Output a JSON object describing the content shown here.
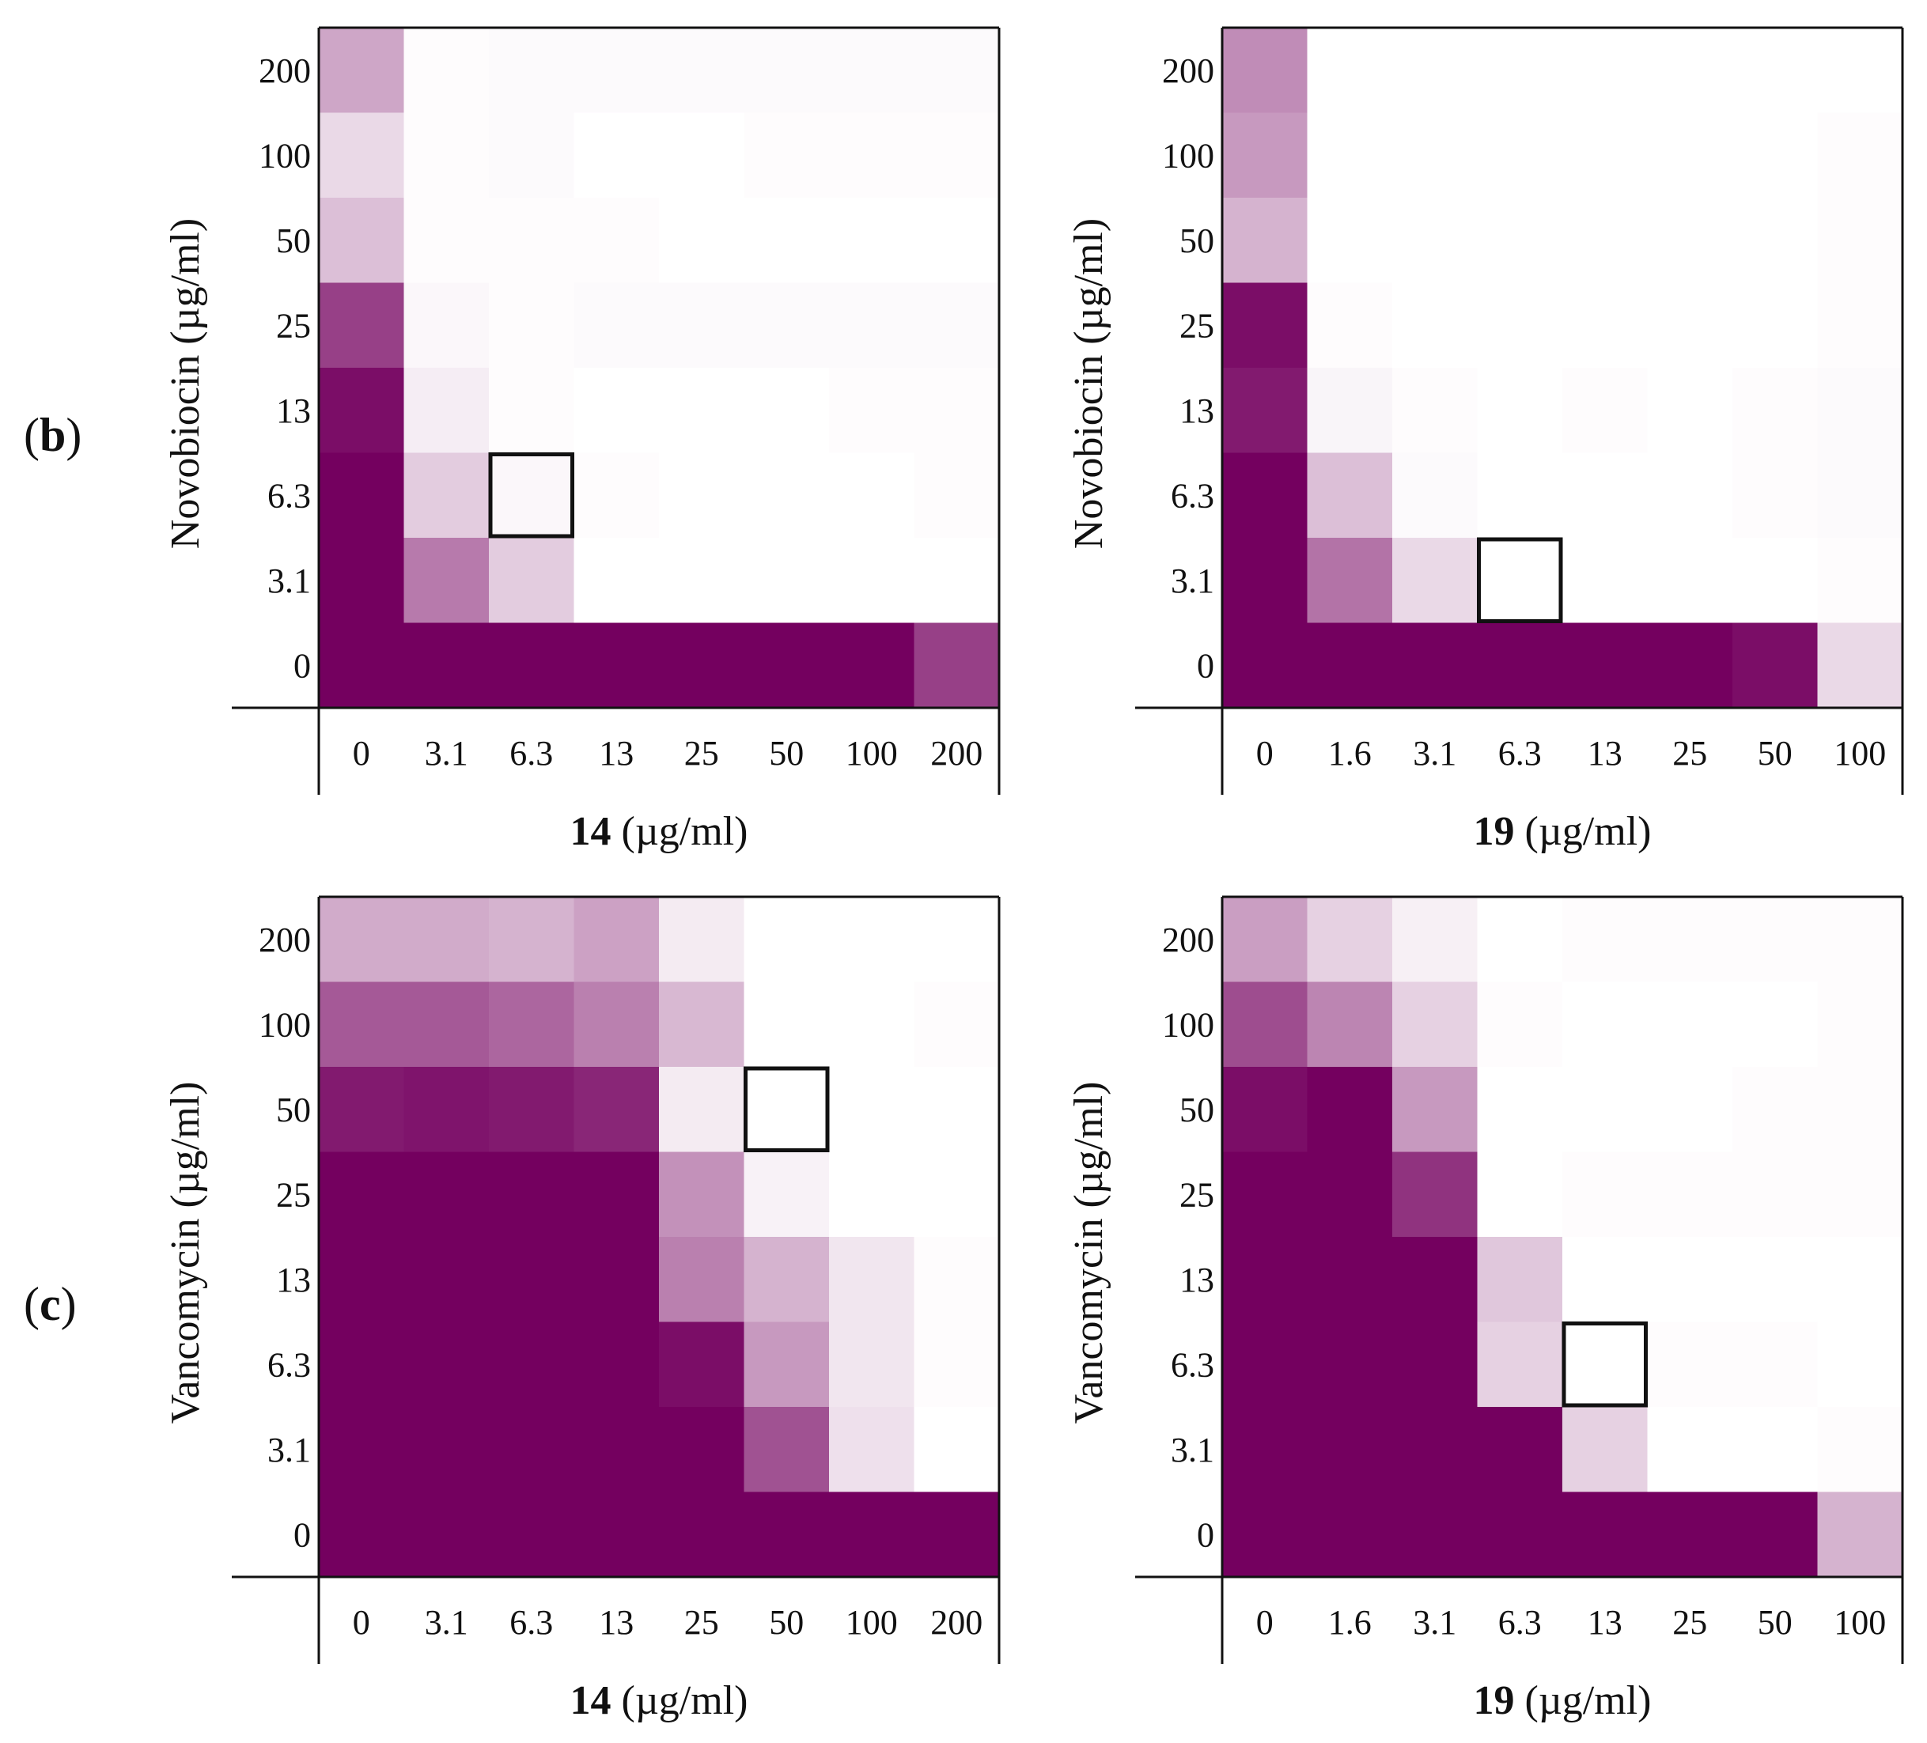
{
  "colors": {
    "max_inhibition": "#74005f",
    "no_inhibition": "#ffffff",
    "frame": "#111111"
  },
  "chart_data": [
    {
      "type": "heatmap",
      "panel_label": "(b)",
      "show_panel_label": true,
      "x_compound_bold": "14",
      "x_unit": " (µg/ml)",
      "ylabel": "Novobiocin (µg/ml)",
      "x_ticks": [
        "0",
        "3.1",
        "6.3",
        "13",
        "25",
        "50",
        "100",
        "200"
      ],
      "y_ticks_top_to_bottom": [
        "200",
        "100",
        "50",
        "25",
        "13",
        "6.3",
        "3.1",
        "0"
      ],
      "value_scale": "relative growth 0 to 1 (1 = dark purple)",
      "values_top_to_bottom": [
        [
          0.35,
          0.01,
          0.02,
          0.02,
          0.02,
          0.02,
          0.02,
          0.02
        ],
        [
          0.15,
          0.01,
          0.02,
          0.0,
          0.0,
          0.01,
          0.01,
          0.01
        ],
        [
          0.25,
          0.01,
          0.01,
          0.01,
          0.0,
          0.0,
          0.0,
          0.0
        ],
        [
          0.75,
          0.03,
          0.01,
          0.02,
          0.02,
          0.02,
          0.02,
          0.02
        ],
        [
          0.95,
          0.07,
          0.01,
          0.0,
          0.0,
          0.0,
          0.01,
          0.01
        ],
        [
          1.0,
          0.2,
          0.03,
          0.01,
          0.0,
          0.0,
          0.0,
          0.01
        ],
        [
          1.0,
          0.52,
          0.2,
          0.0,
          0.0,
          0.0,
          0.0,
          0.0
        ],
        [
          1.0,
          1.0,
          1.0,
          1.0,
          1.0,
          1.0,
          1.0,
          0.75
        ]
      ],
      "highlight": {
        "x": "6.3",
        "y": "6.3"
      }
    },
    {
      "type": "heatmap",
      "panel_label": "",
      "show_panel_label": false,
      "x_compound_bold": "19",
      "x_unit": " (µg/ml)",
      "ylabel": "Novobiocin (µg/ml)",
      "x_ticks": [
        "0",
        "1.6",
        "3.1",
        "6.3",
        "13",
        "25",
        "50",
        "100"
      ],
      "y_ticks_top_to_bottom": [
        "200",
        "100",
        "50",
        "25",
        "13",
        "6.3",
        "3.1",
        "0"
      ],
      "value_scale": "relative growth 0 to 1 (1 = dark purple)",
      "values_top_to_bottom": [
        [
          0.45,
          0.0,
          0.0,
          0.0,
          0.0,
          0.0,
          0.0,
          0.0
        ],
        [
          0.4,
          0.0,
          0.0,
          0.0,
          0.0,
          0.0,
          0.0,
          0.01
        ],
        [
          0.3,
          0.0,
          0.0,
          0.0,
          0.0,
          0.0,
          0.0,
          0.01
        ],
        [
          0.95,
          0.01,
          0.0,
          0.0,
          0.0,
          0.0,
          0.0,
          0.01
        ],
        [
          0.9,
          0.04,
          0.01,
          0.0,
          0.01,
          0.0,
          0.01,
          0.02
        ],
        [
          1.0,
          0.25,
          0.02,
          0.0,
          0.0,
          0.0,
          0.01,
          0.02
        ],
        [
          1.0,
          0.55,
          0.15,
          0.0,
          0.0,
          0.0,
          0.0,
          0.01
        ],
        [
          1.0,
          1.0,
          1.0,
          1.0,
          1.0,
          1.0,
          0.95,
          0.15
        ]
      ],
      "highlight": {
        "x": "6.3",
        "y": "3.1"
      }
    },
    {
      "type": "heatmap",
      "panel_label": "(c)",
      "show_panel_label": true,
      "x_compound_bold": "14",
      "x_unit": " (µg/ml)",
      "ylabel": "Vancomycin (µg/ml)",
      "x_ticks": [
        "0",
        "3.1",
        "6.3",
        "13",
        "25",
        "50",
        "100",
        "200"
      ],
      "y_ticks_top_to_bottom": [
        "200",
        "100",
        "50",
        "25",
        "13",
        "6.3",
        "3.1",
        "0"
      ],
      "value_scale": "relative growth 0 to 1 (1 = dark purple)",
      "values_top_to_bottom": [
        [
          0.33,
          0.33,
          0.3,
          0.37,
          0.08,
          0.0,
          0.0,
          0.0
        ],
        [
          0.65,
          0.65,
          0.6,
          0.5,
          0.28,
          0.0,
          0.0,
          0.01
        ],
        [
          0.9,
          0.92,
          0.9,
          0.85,
          0.08,
          0.0,
          0.0,
          0.0
        ],
        [
          1.0,
          1.0,
          1.0,
          1.0,
          0.43,
          0.05,
          0.0,
          0.0
        ],
        [
          1.0,
          1.0,
          1.0,
          1.0,
          0.5,
          0.3,
          0.1,
          0.01
        ],
        [
          1.0,
          1.0,
          1.0,
          1.0,
          0.95,
          0.4,
          0.1,
          0.01
        ],
        [
          1.0,
          1.0,
          1.0,
          1.0,
          1.0,
          0.68,
          0.12,
          0.0
        ],
        [
          1.0,
          1.0,
          1.0,
          1.0,
          1.0,
          1.0,
          1.0,
          1.0
        ]
      ],
      "highlight": {
        "x": "50",
        "y": "50"
      }
    },
    {
      "type": "heatmap",
      "panel_label": "",
      "show_panel_label": false,
      "x_compound_bold": "19",
      "x_unit": " (µg/ml)",
      "ylabel": "Vancomycin (µg/ml)",
      "x_ticks": [
        "0",
        "1.6",
        "3.1",
        "6.3",
        "13",
        "25",
        "50",
        "100"
      ],
      "y_ticks_top_to_bottom": [
        "200",
        "100",
        "50",
        "25",
        "13",
        "6.3",
        "3.1",
        "0"
      ],
      "value_scale": "relative growth 0 to 1 (1 = dark purple)",
      "values_top_to_bottom": [
        [
          0.38,
          0.18,
          0.06,
          0.0,
          0.01,
          0.01,
          0.01,
          0.01
        ],
        [
          0.7,
          0.48,
          0.18,
          0.01,
          0.0,
          0.0,
          0.0,
          0.01
        ],
        [
          0.95,
          1.0,
          0.4,
          0.0,
          0.0,
          0.0,
          0.01,
          0.01
        ],
        [
          1.0,
          1.0,
          0.8,
          0.0,
          0.01,
          0.01,
          0.01,
          0.01
        ],
        [
          1.0,
          1.0,
          1.0,
          0.22,
          0.0,
          0.0,
          0.0,
          0.0
        ],
        [
          1.0,
          1.0,
          1.0,
          0.18,
          0.0,
          0.01,
          0.01,
          0.0
        ],
        [
          1.0,
          1.0,
          1.0,
          1.0,
          0.18,
          0.0,
          0.0,
          0.01
        ],
        [
          1.0,
          1.0,
          1.0,
          1.0,
          1.0,
          1.0,
          1.0,
          0.3
        ]
      ],
      "highlight": {
        "x": "13",
        "y": "6.3"
      }
    }
  ]
}
